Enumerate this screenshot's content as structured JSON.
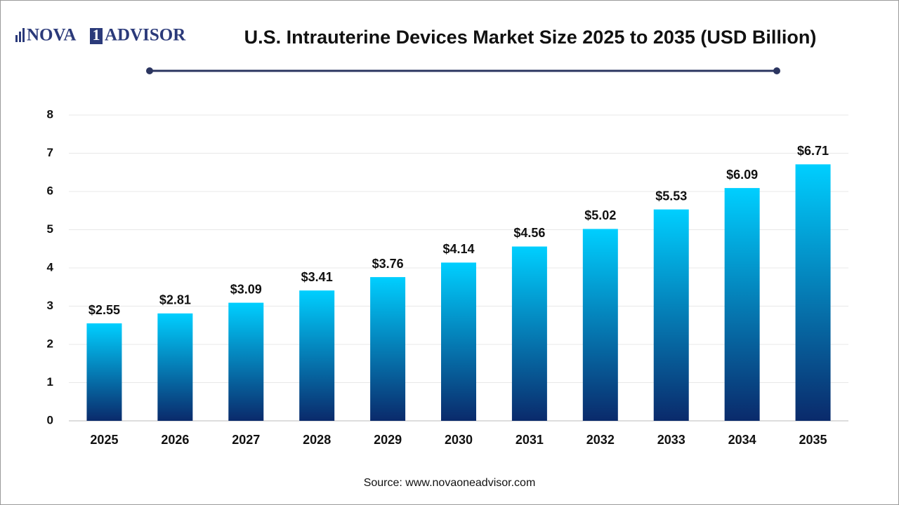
{
  "logo": {
    "left": "NOVA",
    "mark": "1",
    "right": "ADVISOR"
  },
  "chart_data": {
    "type": "bar",
    "title": "U.S. Intrauterine Devices Market Size 2025 to 2035 (USD Billion)",
    "categories": [
      "2025",
      "2026",
      "2027",
      "2028",
      "2029",
      "2030",
      "2031",
      "2032",
      "2033",
      "2034",
      "2035"
    ],
    "values": [
      2.55,
      2.81,
      3.09,
      3.41,
      3.76,
      4.14,
      4.56,
      5.02,
      5.53,
      6.09,
      6.71
    ],
    "value_labels": [
      "$2.55",
      "$2.81",
      "$3.09",
      "$3.41",
      "$3.76",
      "$4.14",
      "$4.56",
      "$5.02",
      "$5.53",
      "$6.09",
      "$6.71"
    ],
    "gradient": [
      "#00cfff",
      "#0a2a6b"
    ],
    "ylim": [
      0,
      8
    ],
    "yticks": [
      0,
      1,
      2,
      3,
      4,
      5,
      6,
      7,
      8
    ],
    "grid": true,
    "source": "Source: www.novaoneadvisor.com"
  }
}
